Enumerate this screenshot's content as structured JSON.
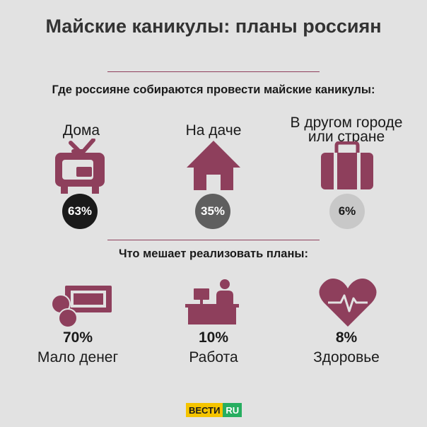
{
  "title": "Майские каникулы: планы россиян",
  "section1_heading": "Где россияне собираются провести майские каникулы:",
  "section2_heading": "Что мешает реализовать планы:",
  "plans": [
    {
      "label": "Дома",
      "percent": "63%",
      "icon": "tv-icon",
      "circle_color": "#1a1a1a",
      "text_color": "#ffffff"
    },
    {
      "label": "На даче",
      "percent": "35%",
      "icon": "house-icon",
      "circle_color": "#5f5f5f",
      "text_color": "#ffffff"
    },
    {
      "label": "В другом городе или стране",
      "percent": "6%",
      "icon": "suitcase-icon",
      "circle_color": "#c8c8c8",
      "text_color": "#1a1a1a"
    }
  ],
  "obstacles": [
    {
      "percent": "70%",
      "label": "Мало денег",
      "icon": "money-icon"
    },
    {
      "percent": "10%",
      "label": "Работа",
      "icon": "office-desk-icon"
    },
    {
      "percent": "8%",
      "label": "Здоровье",
      "icon": "heart-pulse-icon"
    }
  ],
  "logo": {
    "part1": "ВЕСТИ",
    "part2": "RU",
    "color1": "#f5c400",
    "color2": "#27ae60"
  },
  "colors": {
    "accent": "#8e3f5c",
    "background": "#e2e2e2"
  }
}
